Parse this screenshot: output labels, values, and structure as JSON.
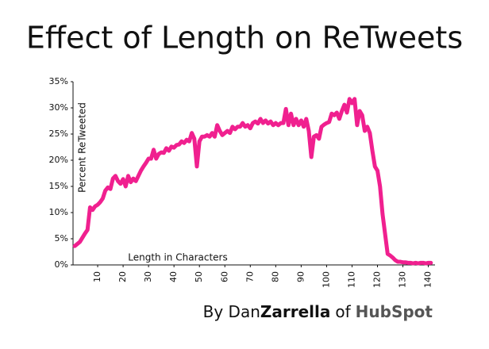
{
  "chart_data": {
    "type": "line",
    "title": "Effect of Length on ReTweets",
    "y_label": "Percent ReTweeted",
    "x_label": "Length in Characters",
    "credit": [
      "By Dan",
      "Zarrella",
      "of",
      "HubSpot"
    ],
    "x": [
      1,
      2,
      3,
      4,
      5,
      6,
      7,
      8,
      9,
      10,
      11,
      12,
      13,
      14,
      15,
      16,
      17,
      18,
      19,
      20,
      21,
      22,
      23,
      24,
      25,
      26,
      27,
      28,
      29,
      30,
      31,
      32,
      33,
      34,
      35,
      36,
      37,
      38,
      39,
      40,
      41,
      42,
      43,
      44,
      45,
      46,
      47,
      48,
      49,
      50,
      51,
      52,
      53,
      54,
      55,
      56,
      57,
      58,
      59,
      60,
      61,
      62,
      63,
      64,
      65,
      66,
      67,
      68,
      69,
      70,
      71,
      72,
      73,
      74,
      75,
      76,
      77,
      78,
      79,
      80,
      81,
      82,
      83,
      84,
      85,
      86,
      87,
      88,
      89,
      90,
      91,
      92,
      93,
      94,
      95,
      96,
      97,
      98,
      99,
      100,
      101,
      102,
      103,
      104,
      105,
      106,
      107,
      108,
      109,
      110,
      111,
      112,
      113,
      114,
      115,
      116,
      117,
      118,
      119,
      120,
      121,
      122,
      123,
      124,
      125,
      126,
      127,
      128,
      129,
      130,
      131,
      132,
      133,
      134,
      135,
      136,
      137,
      138,
      139,
      140,
      141
    ],
    "series": [
      {
        "name": "Percent ReTweeted",
        "color": "#f0208f",
        "values": [
          3.6,
          4.0,
          4.4,
          5.2,
          6.0,
          6.7,
          11.0,
          10.5,
          11.2,
          11.5,
          12.0,
          12.7,
          14.2,
          14.8,
          14.5,
          16.5,
          17.0,
          16.0,
          15.5,
          16.4,
          15.0,
          17.0,
          15.8,
          16.5,
          16.0,
          17.0,
          18.0,
          18.8,
          19.5,
          20.3,
          20.3,
          22.0,
          20.3,
          21.2,
          21.5,
          21.4,
          22.3,
          21.8,
          22.6,
          22.4,
          22.9,
          23.0,
          23.6,
          23.3,
          23.9,
          23.6,
          25.2,
          24.1,
          18.8,
          23.6,
          24.5,
          24.5,
          24.8,
          24.5,
          25.2,
          24.5,
          26.7,
          25.6,
          24.8,
          25.2,
          25.6,
          25.2,
          26.4,
          25.9,
          26.4,
          26.4,
          27.1,
          26.4,
          26.7,
          26.1,
          27.1,
          27.4,
          27.0,
          27.9,
          27.1,
          27.6,
          27.0,
          27.4,
          26.7,
          27.1,
          26.7,
          27.1,
          27.1,
          29.8,
          26.7,
          28.9,
          26.7,
          27.9,
          26.7,
          27.6,
          26.4,
          27.9,
          25.6,
          20.6,
          24.5,
          24.8,
          24.1,
          26.4,
          26.8,
          27.1,
          27.3,
          28.9,
          28.6,
          29.1,
          27.9,
          29.4,
          30.6,
          29.1,
          31.7,
          30.9,
          31.7,
          26.7,
          29.4,
          28.6,
          25.6,
          26.4,
          25.2,
          21.8,
          18.8,
          18.0,
          15.0,
          9.7,
          5.9,
          2.1,
          1.8,
          1.4,
          0.9,
          0.6,
          0.6,
          0.5,
          0.5,
          0.4,
          0.4,
          0.3,
          0.4,
          0.3,
          0.4,
          0.4,
          0.3,
          0.4,
          0.4
        ]
      }
    ],
    "xlim": [
      0,
      142
    ],
    "ylim": [
      0,
      35
    ],
    "xticks": [
      10,
      20,
      30,
      40,
      50,
      60,
      70,
      80,
      90,
      100,
      110,
      120,
      130,
      140
    ],
    "yticks": [
      {
        "value": 0,
        "label": "0%"
      },
      {
        "value": 5,
        "label": "5%"
      },
      {
        "value": 10,
        "label": "10%"
      },
      {
        "value": 15,
        "label": "15%"
      },
      {
        "value": 20,
        "label": "20%"
      },
      {
        "value": 25,
        "label": "25%"
      },
      {
        "value": 30,
        "label": "30%"
      },
      {
        "value": 35,
        "label": "35%"
      }
    ]
  }
}
